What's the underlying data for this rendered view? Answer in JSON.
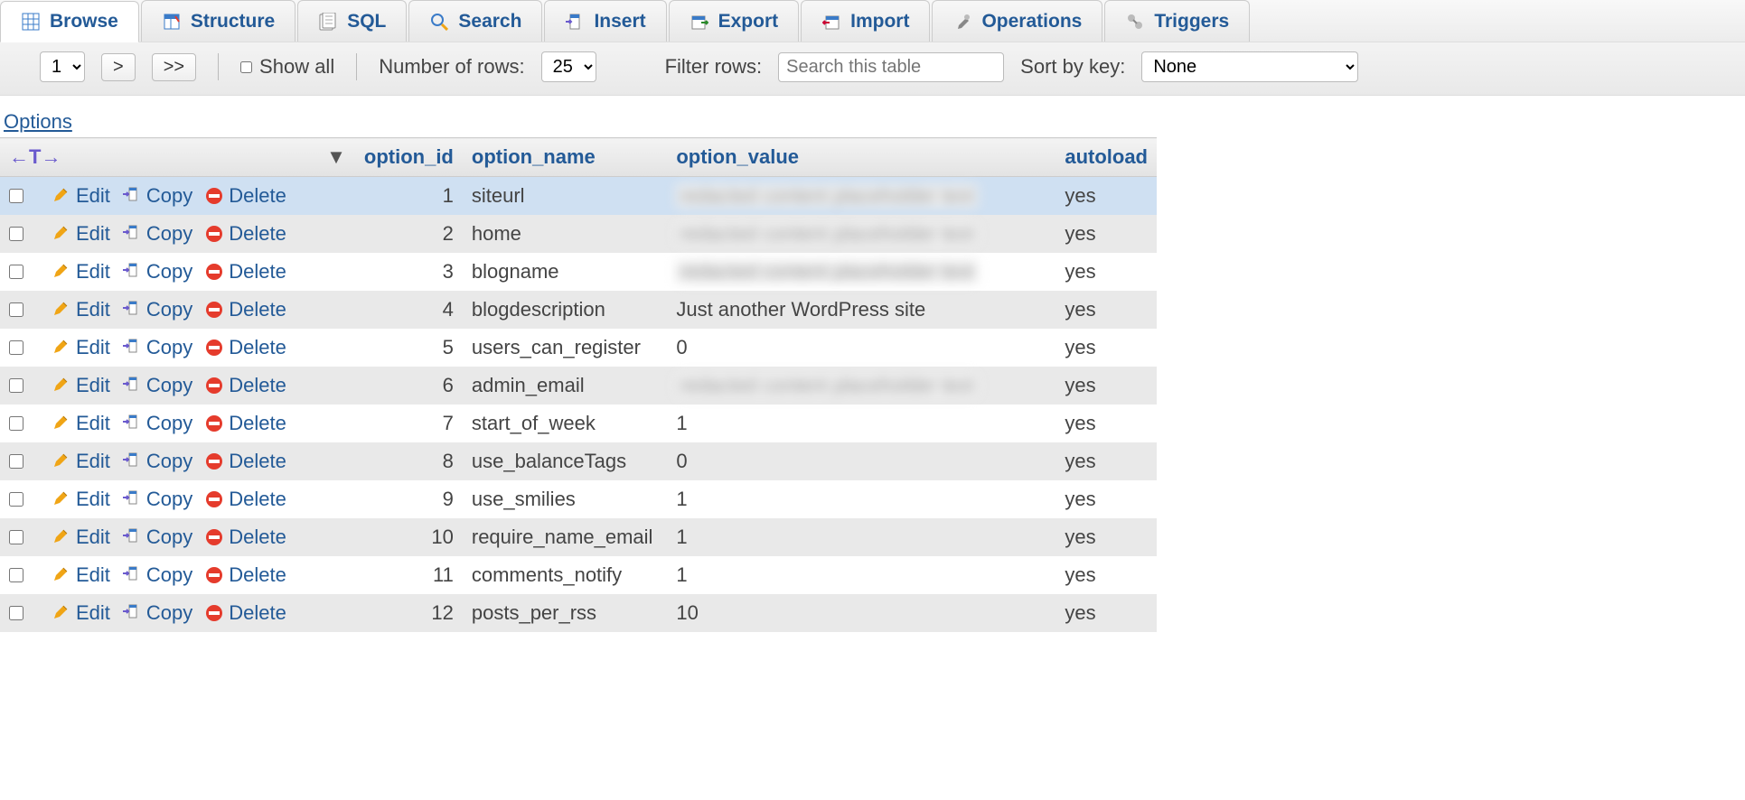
{
  "colors": {
    "link": "#235a97",
    "tab_bg": "#ececec",
    "toolbar_bg": "#e9e9e9",
    "row_even": "#e9e9e9",
    "row_odd": "#ffffff",
    "row_highlight": "#cfe0f2",
    "header_bg": "#e3e3e3",
    "delete_red": "#e53b2c",
    "edit_orange": "#f0a516",
    "copy_purple": "#6a5acd"
  },
  "tabs": [
    {
      "icon": "browse",
      "label": "Browse",
      "active": true
    },
    {
      "icon": "structure",
      "label": "Structure",
      "active": false
    },
    {
      "icon": "sql",
      "label": "SQL",
      "active": false
    },
    {
      "icon": "search",
      "label": "Search",
      "active": false
    },
    {
      "icon": "insert",
      "label": "Insert",
      "active": false
    },
    {
      "icon": "export",
      "label": "Export",
      "active": false
    },
    {
      "icon": "import",
      "label": "Import",
      "active": false
    },
    {
      "icon": "operations",
      "label": "Operations",
      "active": false
    },
    {
      "icon": "triggers",
      "label": "Triggers",
      "active": false
    }
  ],
  "toolbar": {
    "page_select": "1",
    "pager_next": ">",
    "pager_last": ">>",
    "show_all_label": "Show all",
    "show_all_checked": false,
    "num_rows_label": "Number of rows:",
    "num_rows_value": "25",
    "filter_label": "Filter rows:",
    "filter_placeholder": "Search this table",
    "sort_label": "Sort by key:",
    "sort_value": "None"
  },
  "options_label": "Options",
  "row_action_labels": {
    "edit": "Edit",
    "copy": "Copy",
    "delete": "Delete"
  },
  "columns": [
    "option_id",
    "option_name",
    "option_value",
    "autoload"
  ],
  "sort_indicator_col": "option_id",
  "rows": [
    {
      "id": 1,
      "name": "siteurl",
      "value": "",
      "blurred": true,
      "autoload": "yes",
      "highlight": true
    },
    {
      "id": 2,
      "name": "home",
      "value": "",
      "blurred": true,
      "autoload": "yes"
    },
    {
      "id": 3,
      "name": "blogname",
      "value": "",
      "blurred": true,
      "autoload": "yes"
    },
    {
      "id": 4,
      "name": "blogdescription",
      "value": "Just another WordPress site",
      "blurred": false,
      "autoload": "yes"
    },
    {
      "id": 5,
      "name": "users_can_register",
      "value": "0",
      "blurred": false,
      "autoload": "yes"
    },
    {
      "id": 6,
      "name": "admin_email",
      "value": "",
      "blurred": true,
      "autoload": "yes"
    },
    {
      "id": 7,
      "name": "start_of_week",
      "value": "1",
      "blurred": false,
      "autoload": "yes"
    },
    {
      "id": 8,
      "name": "use_balanceTags",
      "value": "0",
      "blurred": false,
      "autoload": "yes"
    },
    {
      "id": 9,
      "name": "use_smilies",
      "value": "1",
      "blurred": false,
      "autoload": "yes"
    },
    {
      "id": 10,
      "name": "require_name_email",
      "value": "1",
      "blurred": false,
      "autoload": "yes"
    },
    {
      "id": 11,
      "name": "comments_notify",
      "value": "1",
      "blurred": false,
      "autoload": "yes"
    },
    {
      "id": 12,
      "name": "posts_per_rss",
      "value": "10",
      "blurred": false,
      "autoload": "yes"
    }
  ]
}
